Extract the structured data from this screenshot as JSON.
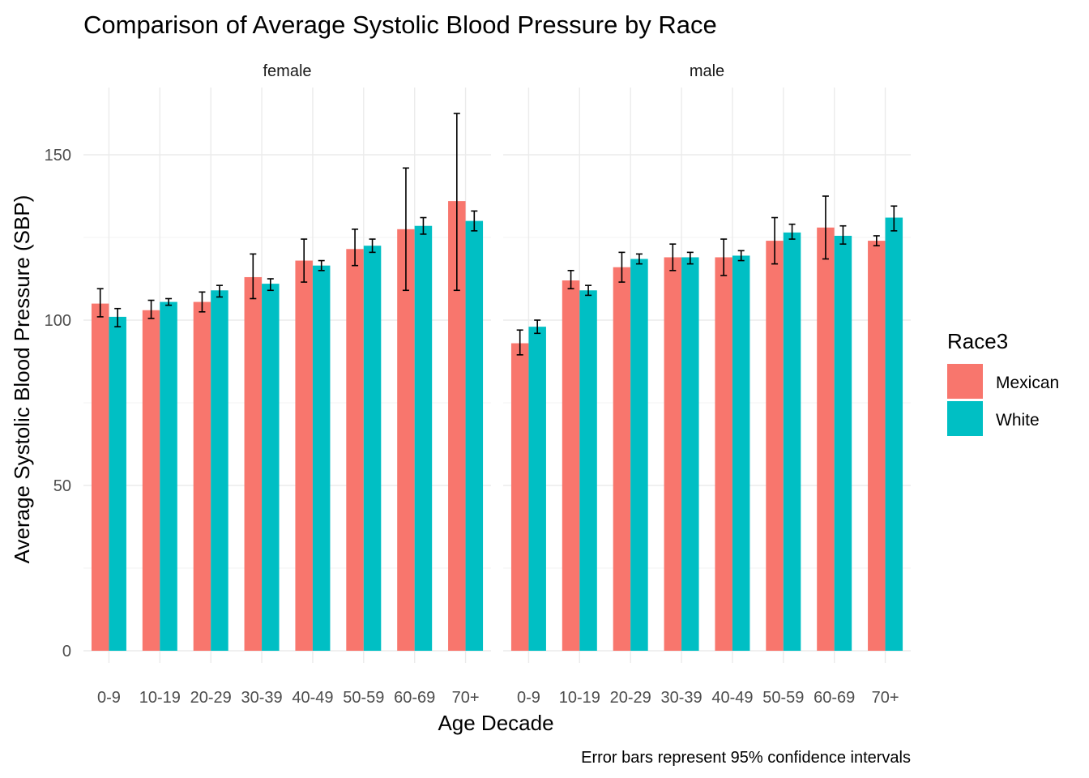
{
  "chart_data": {
    "type": "bar",
    "title": "Comparison of Average Systolic Blood Pressure by Race",
    "xlabel": "Age Decade",
    "ylabel": "Average Systolic Blood Pressure (SBP)",
    "caption": "Error bars represent 95% confidence intervals",
    "ylim": [
      0,
      170
    ],
    "yticks": [
      0,
      50,
      100,
      150
    ],
    "grid": true,
    "legend": {
      "title": "Race3",
      "placement": "right"
    },
    "categories": [
      "0-9",
      "10-19",
      "20-29",
      "30-39",
      "40-49",
      "50-59",
      "60-69",
      "70+"
    ],
    "facets": [
      {
        "label": "female",
        "series": [
          {
            "name": "Mexican",
            "color": "#F8766D",
            "values": [
              105,
              103,
              105.5,
              113,
              118,
              121.5,
              127.5,
              136
            ],
            "lower": [
              101,
              100.5,
              102.5,
              106.5,
              111.5,
              116.5,
              109,
              109
            ],
            "upper": [
              109.5,
              106,
              108.5,
              120,
              124.5,
              127.5,
              146,
              162.5
            ]
          },
          {
            "name": "White",
            "color": "#00BFC4",
            "values": [
              101,
              105.5,
              109,
              111,
              116.5,
              122.5,
              128.5,
              130
            ],
            "lower": [
              98,
              104.5,
              107,
              109,
              115,
              120.5,
              126,
              127
            ],
            "upper": [
              103.5,
              106.5,
              110.5,
              112.5,
              118,
              124.5,
              131,
              133
            ]
          }
        ]
      },
      {
        "label": "male",
        "series": [
          {
            "name": "Mexican",
            "color": "#F8766D",
            "values": [
              93,
              112,
              116,
              119,
              119,
              124,
              128,
              124
            ],
            "lower": [
              89.5,
              109.5,
              111.5,
              115,
              113.5,
              117,
              118.5,
              122.5
            ],
            "upper": [
              97,
              115,
              120.5,
              123,
              124.5,
              131,
              137.5,
              125.5
            ]
          },
          {
            "name": "White",
            "color": "#00BFC4",
            "values": [
              98,
              109,
              118.5,
              119,
              119.5,
              126.5,
              125.5,
              131
            ],
            "lower": [
              96,
              107.5,
              117,
              117,
              118,
              124.5,
              123,
              127
            ],
            "upper": [
              100,
              110.5,
              120,
              120.5,
              121,
              129,
              128.5,
              134.5
            ]
          }
        ]
      }
    ]
  }
}
